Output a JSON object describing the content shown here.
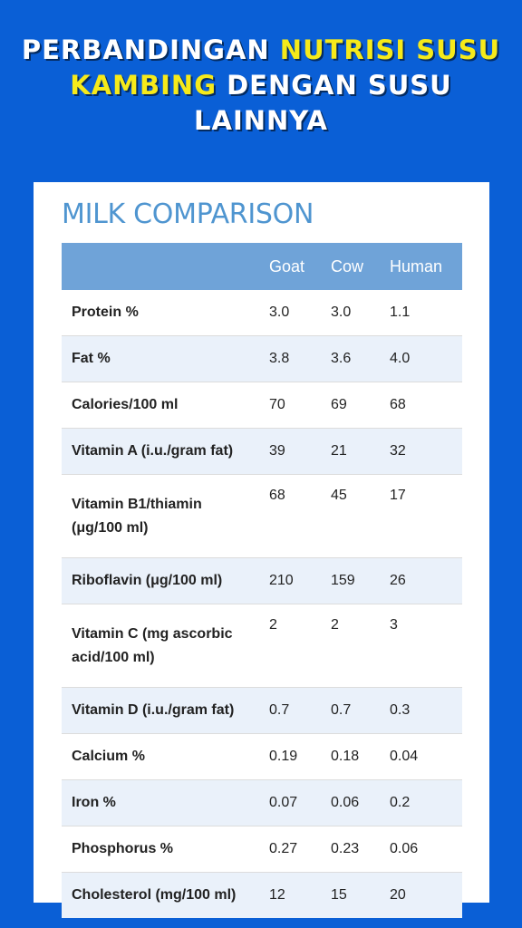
{
  "headline": {
    "line1_a": "PERBANDINGAN ",
    "line1_b": "NUTRISI SUSU",
    "line2_a": "KAMBING",
    "line2_b": " DENGAN SUSU",
    "line3": "LAINNYA",
    "highlight_color": "#f6ea1a",
    "text_color": "#ffffff"
  },
  "background_color": "#0a5fd6",
  "card": {
    "title": "MILK COMPARISON",
    "title_color": "#4f95d0",
    "header_color": "#6fa3d8",
    "stripe_color": "#eaf1fa"
  },
  "table": {
    "columns": [
      "",
      "Goat",
      "Cow",
      "Human"
    ],
    "rows": [
      {
        "label": "Protein %",
        "goat": "3.0",
        "cow": "3.0",
        "human": "1.1"
      },
      {
        "label": "Fat %",
        "goat": "3.8",
        "cow": "3.6",
        "human": "4.0"
      },
      {
        "label": "Calories/100 ml",
        "goat": "70",
        "cow": "69",
        "human": "68"
      },
      {
        "label": "Vitamin A (i.u./gram fat)",
        "goat": "39",
        "cow": "21",
        "human": "32"
      },
      {
        "label": "Vitamin B1/thiamin (μg/100 ml)",
        "goat": "68",
        "cow": "45",
        "human": "17"
      },
      {
        "label": "Riboflavin (μg/100 ml)",
        "goat": "210",
        "cow": "159",
        "human": "26"
      },
      {
        "label": "Vitamin C (mg ascorbic acid/100 ml)",
        "goat": "2",
        "cow": "2",
        "human": "3"
      },
      {
        "label": "Vitamin D (i.u./gram fat)",
        "goat": "0.7",
        "cow": "0.7",
        "human": "0.3"
      },
      {
        "label": "Calcium %",
        "goat": "0.19",
        "cow": "0.18",
        "human": "0.04"
      },
      {
        "label": "Iron %",
        "goat": "0.07",
        "cow": "0.06",
        "human": "0.2"
      },
      {
        "label": "Phosphorus %",
        "goat": "0.27",
        "cow": "0.23",
        "human": "0.06"
      },
      {
        "label": "Cholesterol (mg/100 ml)",
        "goat": "12",
        "cow": "15",
        "human": "20"
      }
    ]
  }
}
